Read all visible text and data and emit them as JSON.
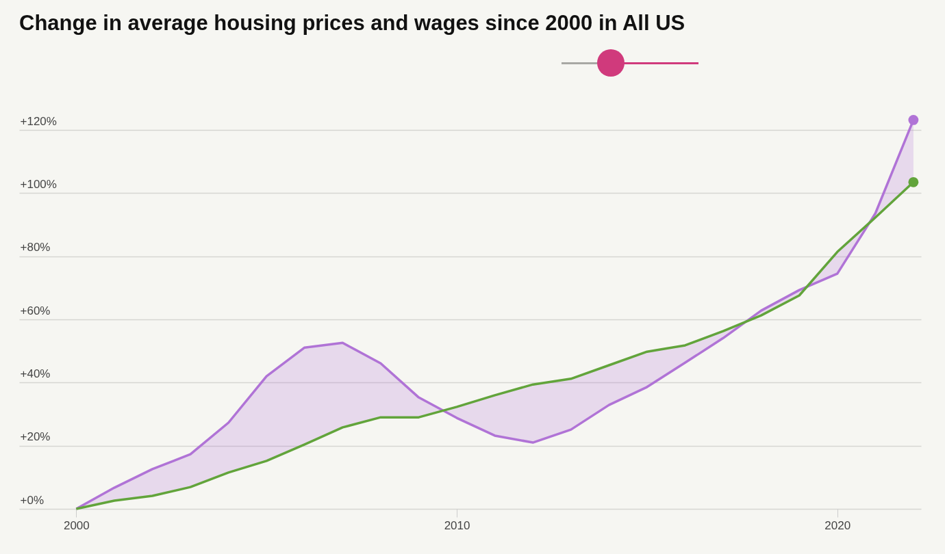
{
  "chart_data": {
    "type": "line",
    "title": "Change in average housing prices and wages since 2000 in All US",
    "x": [
      2000,
      2001,
      2002,
      2003,
      2004,
      2005,
      2006,
      2007,
      2008,
      2009,
      2010,
      2011,
      2012,
      2013,
      2014,
      2015,
      2016,
      2017,
      2018,
      2019,
      2020,
      2021,
      2022
    ],
    "series": [
      {
        "color": "#b073d6",
        "values": [
          0,
          6.7,
          12.6,
          17.3,
          27.3,
          42,
          51.1,
          52.6,
          46.1,
          35.3,
          28.8,
          23.2,
          21,
          25.1,
          32.9,
          38.6,
          46.3,
          54.1,
          62.8,
          69.3,
          74.5,
          93.6,
          123.2
        ]
      },
      {
        "color": "#62a43b",
        "values": [
          0,
          2.6,
          4.1,
          6.9,
          11.5,
          15.2,
          20.4,
          25.8,
          29,
          29,
          32.3,
          36,
          39.4,
          41.2,
          45.5,
          49.8,
          51.8,
          56.3,
          61.3,
          67.6,
          81.4,
          92.3,
          103.5
        ]
      }
    ],
    "xlim": [
      1998.5,
      2022.2
    ],
    "xticks": [
      2000,
      2010,
      2020
    ],
    "ylim": [
      0,
      130
    ],
    "yticks": [
      {
        "value": 0,
        "label": "+0%"
      },
      {
        "value": 20,
        "label": "+20%"
      },
      {
        "value": 40,
        "label": "+40%"
      },
      {
        "value": 60,
        "label": "+60%"
      },
      {
        "value": 80,
        "label": "+80%"
      },
      {
        "value": 100,
        "label": "+100%"
      },
      {
        "value": 120,
        "label": "+120%"
      }
    ],
    "grid": "y",
    "line_style": "solid"
  }
}
